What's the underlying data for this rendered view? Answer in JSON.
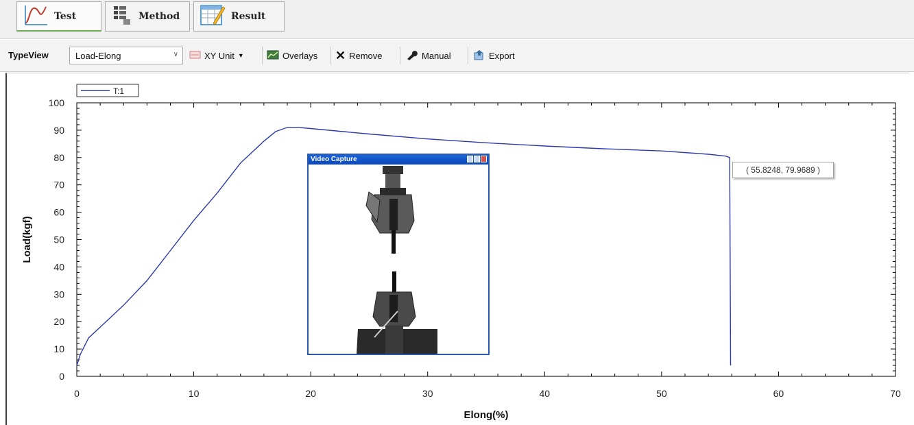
{
  "tabs": [
    {
      "label": "Test",
      "icon": "curve-icon",
      "active": true
    },
    {
      "label": "Method",
      "icon": "method-grid-icon",
      "active": false
    },
    {
      "label": "Result",
      "icon": "result-sheet-icon",
      "active": false
    }
  ],
  "toolbar": {
    "typeview_label": "TypeView",
    "typeview_value": "Load-Elong",
    "xy_unit_label": "XY Unit",
    "overlays_label": "Overlays",
    "remove_label": "Remove",
    "manual_label": "Manual",
    "export_label": "Export"
  },
  "video_capture": {
    "title": "Video Capture"
  },
  "readout": "( 55.8248, 79.9689 )",
  "colors": {
    "series": "#2b3aa8",
    "accent": "#1c64d8"
  },
  "chart_data": {
    "type": "line",
    "title": "",
    "xlabel": "Elong(%)",
    "ylabel": "Load(kgf)",
    "xlim": [
      0,
      70
    ],
    "ylim": [
      0,
      100
    ],
    "x_ticks": [
      0,
      10,
      20,
      30,
      40,
      50,
      60,
      70
    ],
    "y_ticks": [
      0,
      10,
      20,
      30,
      40,
      50,
      60,
      70,
      80,
      90,
      100
    ],
    "legend": {
      "entries": [
        "T:1"
      ],
      "placement": "top-left"
    },
    "series": [
      {
        "name": "T:1",
        "x": [
          0,
          0.3,
          1,
          2,
          4,
          6,
          8,
          10,
          12,
          14,
          16,
          17,
          18,
          19,
          20,
          25,
          30,
          35,
          40,
          45,
          50,
          54,
          55.5,
          55.8248,
          55.9,
          55.9
        ],
        "y": [
          4,
          8,
          14,
          18,
          26,
          35,
          46,
          57,
          67,
          78,
          86,
          89.5,
          91,
          91,
          90.6,
          88.6,
          86.8,
          85.4,
          84.2,
          83.2,
          82.4,
          81.2,
          80.5,
          79.9689,
          5,
          4
        ]
      }
    ]
  }
}
